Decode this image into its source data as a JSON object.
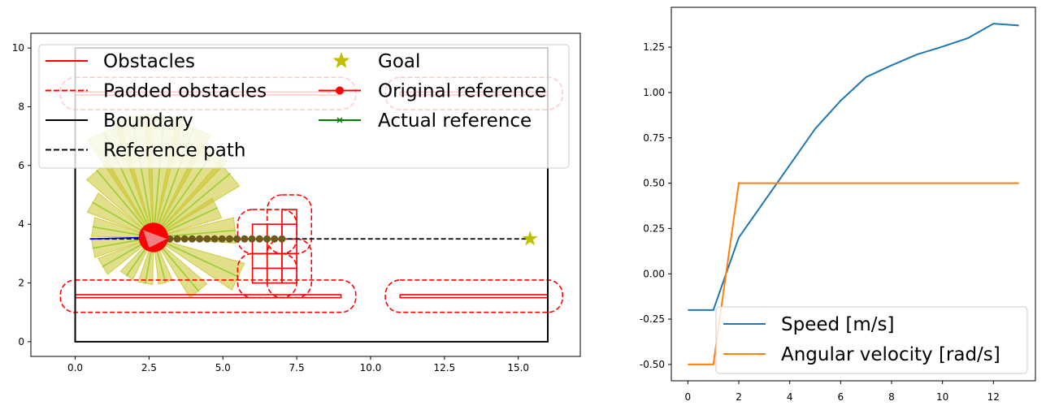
{
  "chart_data": [
    {
      "type": "line",
      "title": "",
      "xlabel": "",
      "ylabel": "",
      "xlim": [
        -1.5,
        17.1
      ],
      "ylim": [
        -0.5,
        10.5
      ],
      "grid": false,
      "legend_placement": "upper",
      "xticks": [
        "0.0",
        "2.5",
        "5.0",
        "7.5",
        "10.0",
        "12.5",
        "15.0"
      ],
      "yticks": [
        "0",
        "2",
        "4",
        "6",
        "8",
        "10"
      ],
      "legend": [
        {
          "label": "Obstacles",
          "color": "#ff0000",
          "style": "solid"
        },
        {
          "label": "Padded obstacles",
          "color": "#ff0000",
          "style": "dashed"
        },
        {
          "label": "Boundary",
          "color": "#000000",
          "style": "solid"
        },
        {
          "label": "Reference path",
          "color": "#000000",
          "style": "dashed"
        },
        {
          "label": "Goal",
          "color": "#bfbf00",
          "style": "star"
        },
        {
          "label": "Original reference",
          "color": "#ff0000",
          "style": "line-dot"
        },
        {
          "label": "Actual reference",
          "color": "#008000",
          "style": "line-x"
        }
      ],
      "boundary": [
        [
          0,
          0
        ],
        [
          16,
          0
        ],
        [
          16,
          10
        ],
        [
          0,
          10
        ]
      ],
      "obstacles": [
        {
          "shape": "rect",
          "x0": 0,
          "x1": 9,
          "y0": 1.5,
          "y1": 1.6
        },
        {
          "shape": "rect",
          "x0": 11,
          "x1": 16,
          "y0": 1.5,
          "y1": 1.6
        },
        {
          "shape": "rect",
          "x0": 0,
          "x1": 9,
          "y0": 8.4,
          "y1": 8.5
        },
        {
          "shape": "rect",
          "x0": 11,
          "x1": 16,
          "y0": 8.4,
          "y1": 8.5
        },
        {
          "shape": "rect",
          "x0": 6,
          "x1": 7,
          "y0": 3,
          "y1": 4
        },
        {
          "shape": "rect",
          "x0": 7,
          "x1": 7.5,
          "y0": 3,
          "y1": 4.5
        },
        {
          "shape": "rect",
          "x0": 6,
          "x1": 7,
          "y0": 2,
          "y1": 3
        },
        {
          "shape": "rect",
          "x0": 7,
          "x1": 7.5,
          "y0": 2,
          "y1": 3
        }
      ],
      "padded_obstacles": [
        {
          "x0": -0.5,
          "x1": 9.5,
          "y0": 1.0,
          "y1": 2.1
        },
        {
          "x0": 10.5,
          "x1": 16.5,
          "y0": 1.0,
          "y1": 2.1
        },
        {
          "x0": -0.5,
          "x1": 9.5,
          "y0": 7.9,
          "y1": 9.0
        },
        {
          "x0": 10.5,
          "x1": 16.5,
          "y0": 7.9,
          "y1": 9.0
        },
        {
          "x0": 5.5,
          "x1": 7.5,
          "y0": 3.0,
          "y1": 4.5
        },
        {
          "x0": 6.5,
          "x1": 8.0,
          "y0": 3.0,
          "y1": 5.0
        },
        {
          "x0": 5.5,
          "x1": 7.5,
          "y0": 1.5,
          "y1": 3.0
        },
        {
          "x0": 6.5,
          "x1": 8.0,
          "y0": 1.5,
          "y1": 3.5
        }
      ],
      "reference_path": {
        "x": [
          0.5,
          15.4
        ],
        "y": [
          3.5,
          3.5
        ]
      },
      "goal": {
        "x": 15.4,
        "y": 3.5
      },
      "robot": {
        "x": 2.65,
        "y": 3.55,
        "radius": 0.5
      },
      "reference_points": {
        "x0": 3.2,
        "x1": 7.0,
        "count": 16,
        "y": 3.5
      },
      "sensor_rays": [
        {
          "angle": 100,
          "length": 4.2
        },
        {
          "angle": 115,
          "length": 4.0
        },
        {
          "angle": 130,
          "length": 3.0
        },
        {
          "angle": 150,
          "length": 2.4
        },
        {
          "angle": 170,
          "length": 2.1
        },
        {
          "angle": 190,
          "length": 2.1
        },
        {
          "angle": 210,
          "length": 2.0
        },
        {
          "angle": 235,
          "length": 1.6
        },
        {
          "angle": 260,
          "length": 1.6
        },
        {
          "angle": 285,
          "length": 1.6
        },
        {
          "angle": 310,
          "length": 2.4
        },
        {
          "angle": 335,
          "length": 3.2
        },
        {
          "angle": 5,
          "length": 2.8
        },
        {
          "angle": 25,
          "length": 2.4
        },
        {
          "angle": 40,
          "length": 3.4
        },
        {
          "angle": 55,
          "length": 3.6
        },
        {
          "angle": 70,
          "length": 4.0
        },
        {
          "angle": 85,
          "length": 4.2
        }
      ]
    },
    {
      "type": "line",
      "title": "",
      "xlabel": "",
      "ylabel": "",
      "xlim": [
        -0.65,
        13.65
      ],
      "ylim": [
        -0.59,
        1.47
      ],
      "grid": false,
      "legend_placement": "lower-right",
      "xticks": [
        "0",
        "2",
        "4",
        "6",
        "8",
        "10",
        "12"
      ],
      "yticks": [
        "-0.50",
        "-0.25",
        "0.00",
        "0.25",
        "0.50",
        "0.75",
        "1.00",
        "1.25"
      ],
      "series": [
        {
          "name": "Speed [m/s]",
          "color": "#1f77b4",
          "x": [
            0,
            1,
            2,
            3,
            4,
            5,
            6,
            7,
            8,
            9,
            10,
            11,
            12,
            13
          ],
          "y": [
            -0.2,
            -0.2,
            0.2,
            0.4,
            0.6,
            0.8,
            0.955,
            1.085,
            1.15,
            1.21,
            1.253,
            1.3,
            1.38,
            1.37
          ]
        },
        {
          "name": "Angular velocity [rad/s]",
          "color": "#ff7f0e",
          "x": [
            0,
            1,
            2,
            3,
            4,
            5,
            6,
            7,
            8,
            9,
            10,
            11,
            12,
            13
          ],
          "y": [
            -0.5,
            -0.5,
            0.5,
            0.5,
            0.5,
            0.5,
            0.5,
            0.5,
            0.5,
            0.5,
            0.5,
            0.5,
            0.5,
            0.5
          ]
        }
      ]
    }
  ]
}
